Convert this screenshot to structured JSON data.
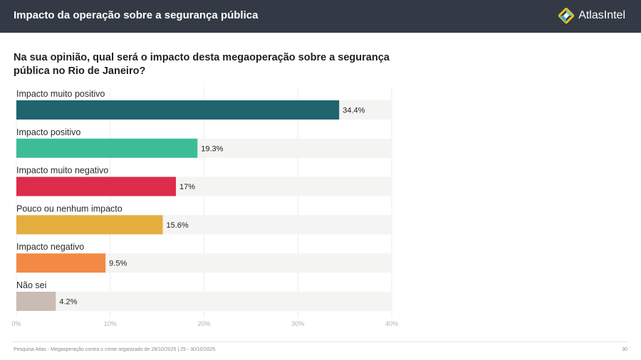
{
  "header": {
    "title": "Impacto da operação sobre a segurança pública",
    "brand": "AtlasIntel",
    "logo_icon": "atlasintel-logo-icon"
  },
  "question": "Na sua opinião, qual será o impacto desta megaoperação sobre a segurança pública no Rio de Janeiro?",
  "chart_data": {
    "type": "bar",
    "orientation": "horizontal",
    "categories": [
      "Impacto muito positivo",
      "Impacto positivo",
      "Impacto muito negativo",
      "Pouco ou nenhum impacto",
      "Impacto negativo",
      "Não sei"
    ],
    "values": [
      34.4,
      19.3,
      17,
      15.6,
      9.5,
      4.2
    ],
    "value_labels": [
      "34.4%",
      "19.3%",
      "17%",
      "15.6%",
      "9.5%",
      "4.2%"
    ],
    "colors": [
      "#1f646e",
      "#3dbd97",
      "#dd2b4c",
      "#e4ae3f",
      "#f28a46",
      "#c9bcb4"
    ],
    "track_color": "#f4f4f2",
    "xlim": [
      0,
      40
    ],
    "xticks": [
      0,
      10,
      20,
      30,
      40
    ],
    "xtick_labels": [
      "0%",
      "10%",
      "20%",
      "30%",
      "40%"
    ],
    "grid": true
  },
  "footer": {
    "source": "Pesquisa Atlas - Megaoperação contra o crime organizado de 28/10/2025 | 29 - 30/10/2025",
    "page": "30"
  }
}
